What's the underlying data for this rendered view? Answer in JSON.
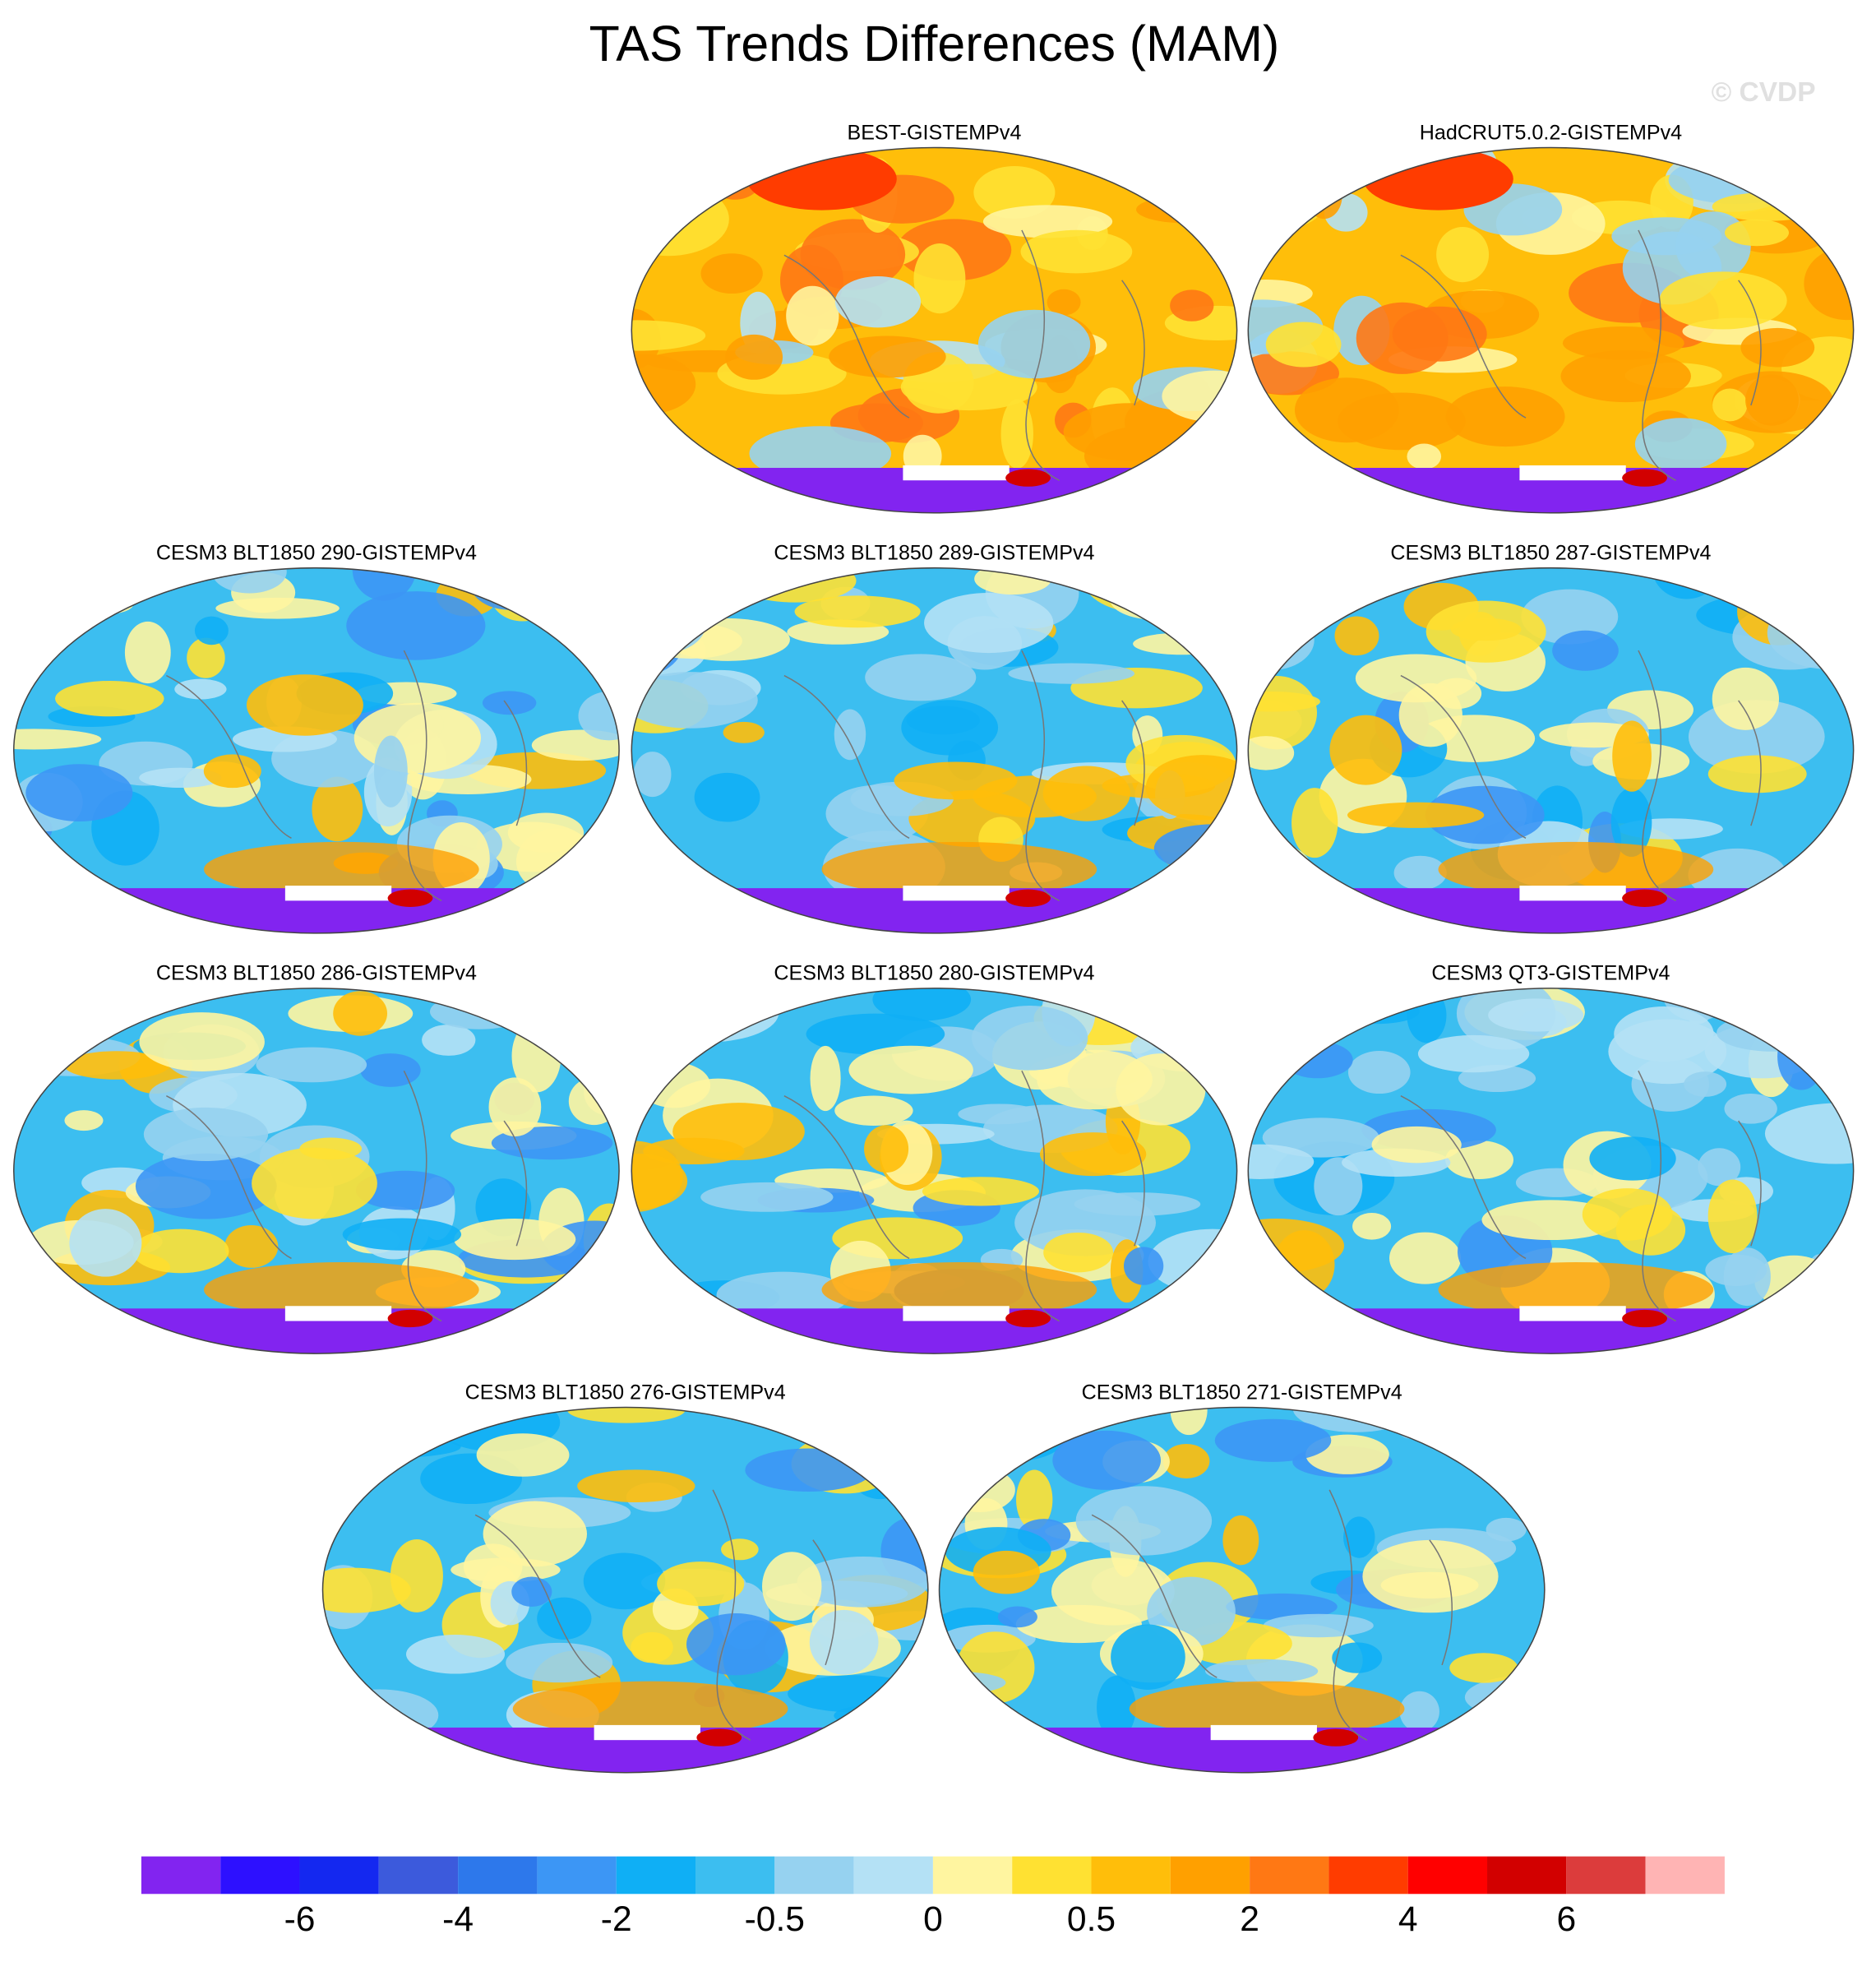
{
  "title": "TAS Trends Differences (MAM)",
  "watermark": "© CVDP",
  "panels": [
    {
      "title": "BEST-GISTEMPv4"
    },
    {
      "title": "HadCRUT5.0.2-GISTEMPv4"
    },
    {
      "title": "CESM3 BLT1850 290-GISTEMPv4"
    },
    {
      "title": "CESM3 BLT1850 289-GISTEMPv4"
    },
    {
      "title": "CESM3 BLT1850 287-GISTEMPv4"
    },
    {
      "title": "CESM3 BLT1850 286-GISTEMPv4"
    },
    {
      "title": "CESM3 BLT1850 280-GISTEMPv4"
    },
    {
      "title": "CESM3 QT3-GISTEMPv4"
    },
    {
      "title": "CESM3 BLT1850 276-GISTEMPv4"
    },
    {
      "title": "CESM3 BLT1850 271-GISTEMPv4"
    }
  ],
  "colorbar": {
    "colors": [
      "#8224f0",
      "#2d10ff",
      "#1428f0",
      "#3c5adc",
      "#2d78eb",
      "#3c96f5",
      "#0faff5",
      "#3cbef0",
      "#96d2f0",
      "#b4e1f5",
      "#fff5a0",
      "#ffe132",
      "#ffbe0a",
      "#ffa000",
      "#ff7814",
      "#ff3c00",
      "#ff0000",
      "#d20000",
      "#dc3c3c",
      "#ffb4b4"
    ],
    "labels": [
      "-6",
      "-4",
      "-2",
      "-0.5",
      "0",
      "0.5",
      "2",
      "4",
      "6"
    ]
  }
}
